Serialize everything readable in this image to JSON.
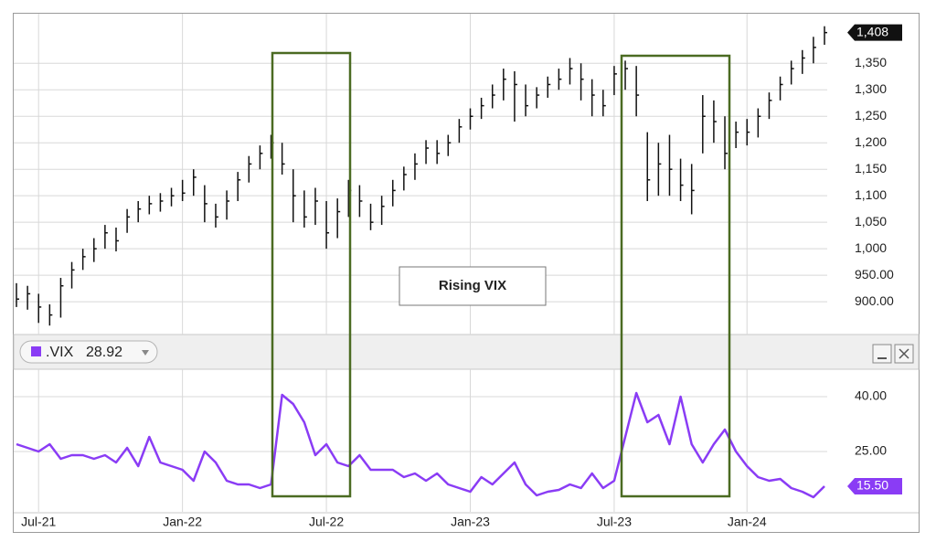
{
  "chart_data": [
    {
      "type": "ohlc",
      "color": "#111111",
      "high": [
        935,
        930,
        915,
        895,
        945,
        975,
        1000,
        1020,
        1045,
        1040,
        1075,
        1090,
        1100,
        1105,
        1115,
        1130,
        1150,
        1120,
        1085,
        1110,
        1145,
        1175,
        1195,
        1215,
        1200,
        1150,
        1110,
        1115,
        1090,
        1095,
        1130,
        1120,
        1085,
        1100,
        1130,
        1155,
        1180,
        1205,
        1205,
        1215,
        1245,
        1265,
        1285,
        1310,
        1340,
        1335,
        1310,
        1305,
        1325,
        1340,
        1360,
        1350,
        1320,
        1300,
        1345,
        1355,
        1345,
        1220,
        1200,
        1215,
        1170,
        1160,
        1290,
        1280,
        1250,
        1240,
        1245,
        1265,
        1295,
        1325,
        1355,
        1375,
        1400,
        1420
      ],
      "low": [
        890,
        885,
        860,
        855,
        870,
        925,
        960,
        975,
        1000,
        995,
        1030,
        1050,
        1065,
        1070,
        1080,
        1090,
        1100,
        1050,
        1040,
        1055,
        1090,
        1125,
        1150,
        1170,
        1140,
        1050,
        1040,
        1045,
        1000,
        1020,
        1060,
        1060,
        1035,
        1045,
        1080,
        1110,
        1130,
        1160,
        1160,
        1175,
        1200,
        1225,
        1245,
        1265,
        1280,
        1240,
        1250,
        1265,
        1285,
        1300,
        1310,
        1280,
        1250,
        1250,
        1290,
        1300,
        1250,
        1090,
        1100,
        1100,
        1090,
        1065,
        1180,
        1200,
        1150,
        1190,
        1195,
        1210,
        1245,
        1280,
        1310,
        1330,
        1350,
        1385
      ],
      "close": [
        905,
        915,
        890,
        875,
        930,
        960,
        985,
        1000,
        1030,
        1015,
        1060,
        1075,
        1085,
        1090,
        1100,
        1105,
        1135,
        1085,
        1060,
        1090,
        1130,
        1160,
        1180,
        1200,
        1160,
        1100,
        1060,
        1090,
        1030,
        1070,
        1110,
        1090,
        1050,
        1080,
        1110,
        1140,
        1160,
        1190,
        1180,
        1200,
        1230,
        1250,
        1270,
        1290,
        1320,
        1310,
        1270,
        1290,
        1310,
        1320,
        1340,
        1320,
        1290,
        1270,
        1330,
        1340,
        1290,
        1130,
        1160,
        1150,
        1120,
        1110,
        1250,
        1240,
        1180,
        1220,
        1220,
        1250,
        1280,
        1310,
        1340,
        1360,
        1380,
        1408
      ],
      "ylim": [
        845,
        1435
      ],
      "yticks": [
        {
          "value": 900,
          "label": "900.00"
        },
        {
          "value": 950,
          "label": "950.00"
        },
        {
          "value": 1000,
          "label": "1,000"
        },
        {
          "value": 1050,
          "label": "1,050"
        },
        {
          "value": 1100,
          "label": "1,100"
        },
        {
          "value": 1150,
          "label": "1,150"
        },
        {
          "value": 1200,
          "label": "1,200"
        },
        {
          "value": 1250,
          "label": "1,250"
        },
        {
          "value": 1300,
          "label": "1,300"
        },
        {
          "value": 1350,
          "label": "1,350"
        }
      ],
      "last_label": "1,408",
      "annotations": [
        "Rising VIX"
      ]
    },
    {
      "type": "line",
      "categories": [
        null,
        null,
        "Jul-21",
        null,
        null,
        null,
        null,
        null,
        null,
        null,
        null,
        null,
        null,
        null,
        null,
        "Jan-22",
        null,
        null,
        null,
        null,
        null,
        null,
        null,
        null,
        null,
        null,
        null,
        null,
        "Jul-22",
        null,
        null,
        null,
        null,
        null,
        null,
        null,
        null,
        null,
        null,
        null,
        null,
        "Jan-23",
        null,
        null,
        null,
        null,
        null,
        null,
        null,
        null,
        null,
        null,
        null,
        null,
        "Jul-23",
        null,
        null,
        null,
        null,
        null,
        null,
        null,
        null,
        null,
        null,
        null,
        "Jan-24",
        null,
        null,
        null,
        null,
        null,
        null,
        null
      ],
      "series": [
        {
          "name": ".VIX",
          "color": "#8a3cf5",
          "values": [
            27,
            26,
            25,
            27,
            23,
            24,
            24,
            23,
            24,
            22,
            26,
            21,
            29,
            22,
            21,
            20,
            17,
            25,
            22,
            17,
            16,
            16,
            15,
            16,
            40.5,
            38,
            33,
            24,
            27,
            22,
            21,
            24,
            20,
            20,
            20,
            18,
            19,
            17,
            19,
            16,
            15,
            14,
            18,
            16,
            19,
            22,
            16,
            13,
            14,
            14.5,
            16,
            15,
            19,
            15,
            17,
            29,
            41,
            33,
            35,
            27,
            40,
            27,
            22,
            27,
            31,
            25,
            21,
            18,
            17,
            17.5,
            15,
            14,
            12.5,
            15.5
          ]
        }
      ],
      "legend_value": 28.92,
      "ylim": [
        8.5,
        47.5
      ],
      "yticks": [
        {
          "value": 25,
          "label": "25.00"
        },
        {
          "value": 40,
          "label": "40.00"
        }
      ],
      "last_label": "15.50"
    }
  ]
}
